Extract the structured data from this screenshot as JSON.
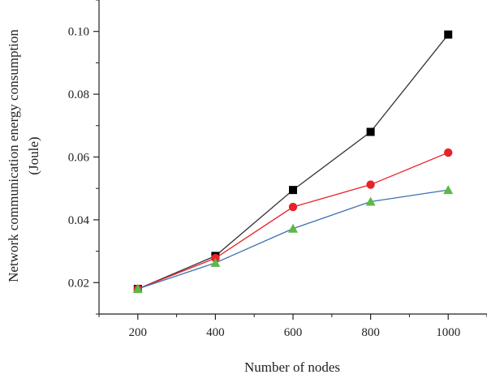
{
  "chart_data": {
    "type": "line",
    "title": "",
    "xlabel": "Number of nodes",
    "ylabel": "Network communication energy consumption",
    "ylabel_unit": "(Joule)",
    "x": [
      200,
      400,
      600,
      800,
      1000
    ],
    "xlim": [
      100,
      1100
    ],
    "ylim": [
      0.01,
      0.11
    ],
    "x_ticks": [
      200,
      400,
      600,
      800,
      1000
    ],
    "y_ticks": [
      0.02,
      0.04,
      0.06,
      0.08,
      0.1
    ],
    "y_tick_labels": [
      "0.02",
      "0.04",
      "0.06",
      "0.08",
      "0.10"
    ],
    "grid": false,
    "legend": "none",
    "series": [
      {
        "values": [
          0.018,
          0.0285,
          0.0495,
          0.068,
          0.099
        ],
        "line_color": "#333333",
        "marker": "square",
        "marker_color": "#000000"
      },
      {
        "values": [
          0.018,
          0.0278,
          0.0441,
          0.0512,
          0.0614
        ],
        "line_color": "#e8222a",
        "marker": "circle",
        "marker_color": "#e8222a"
      },
      {
        "values": [
          0.018,
          0.0263,
          0.0372,
          0.0458,
          0.0495
        ],
        "line_color": "#3a6fb0",
        "marker": "triangle",
        "marker_color": "#5db848"
      }
    ]
  }
}
